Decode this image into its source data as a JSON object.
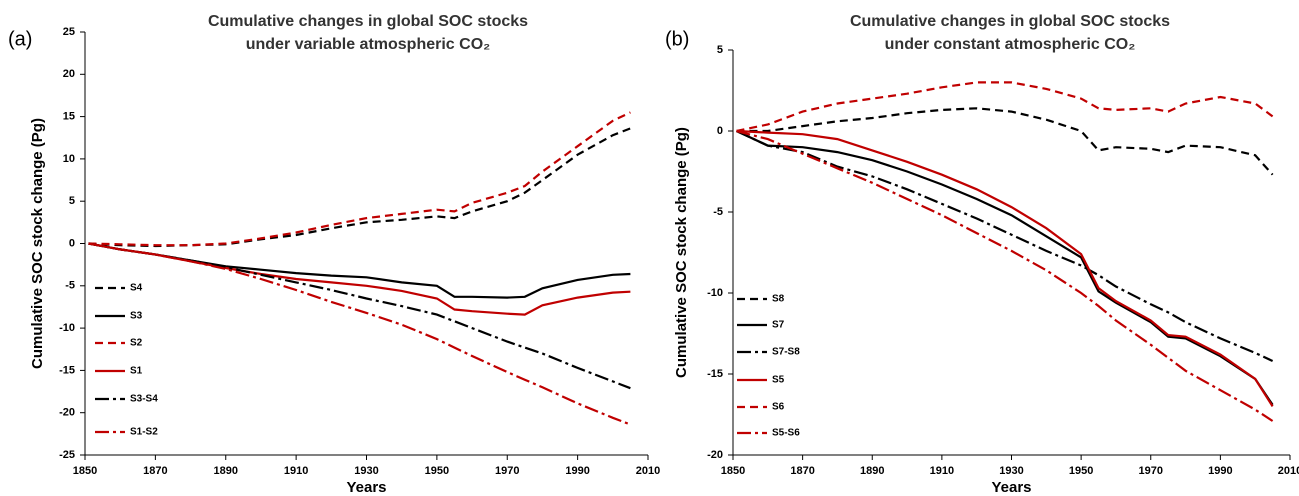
{
  "chart_data": [
    {
      "type": "line",
      "panel_label": "(a)",
      "title": [
        "Cumulative changes in global SOC stocks",
        "under variable atmospheric CO₂"
      ],
      "x_label": "Years",
      "y_label": "Cumulative SOC stock change (Pg)",
      "xlim": [
        1850,
        2010
      ],
      "xticks": [
        1850,
        1870,
        1890,
        1910,
        1930,
        1950,
        1970,
        1990,
        2010
      ],
      "ylim": [
        -25,
        25
      ],
      "yticks": [
        -25,
        -20,
        -15,
        -10,
        -5,
        0,
        5,
        10,
        15,
        20,
        25
      ],
      "x": [
        1851,
        1860,
        1870,
        1880,
        1890,
        1900,
        1910,
        1920,
        1930,
        1940,
        1950,
        1955,
        1960,
        1970,
        1975,
        1980,
        1990,
        2000,
        2005
      ],
      "series": [
        {
          "name": "S4",
          "color": "#000000",
          "dash": "dashed",
          "values": [
            0,
            -0.2,
            -0.3,
            -0.2,
            -0.1,
            0.5,
            1.0,
            1.8,
            2.5,
            2.8,
            3.2,
            3.0,
            3.8,
            5.0,
            6.0,
            7.5,
            10.5,
            12.8,
            13.6
          ]
        },
        {
          "name": "S3",
          "color": "#000000",
          "dash": "solid",
          "values": [
            0,
            -0.7,
            -1.3,
            -2.0,
            -2.7,
            -3.1,
            -3.5,
            -3.8,
            -4.0,
            -4.6,
            -5.0,
            -6.3,
            -6.3,
            -6.4,
            -6.3,
            -5.3,
            -4.3,
            -3.7,
            -3.6
          ]
        },
        {
          "name": "S2",
          "color": "#c00000",
          "dash": "dashed",
          "values": [
            0,
            -0.1,
            -0.2,
            -0.2,
            0,
            0.6,
            1.3,
            2.2,
            3.0,
            3.5,
            4.0,
            3.8,
            4.8,
            6.0,
            6.8,
            8.5,
            11.5,
            14.5,
            15.5
          ]
        },
        {
          "name": "S1",
          "color": "#c00000",
          "dash": "solid",
          "values": [
            0,
            -0.7,
            -1.3,
            -2.1,
            -2.9,
            -3.6,
            -4.2,
            -4.6,
            -5.0,
            -5.6,
            -6.5,
            -7.8,
            -8.0,
            -8.3,
            -8.4,
            -7.3,
            -6.4,
            -5.8,
            -5.7
          ]
        },
        {
          "name": "S3-S4",
          "color": "#000000",
          "dash": "dashdot",
          "values": [
            0,
            -0.7,
            -1.3,
            -2.0,
            -2.8,
            -3.7,
            -4.6,
            -5.5,
            -6.5,
            -7.4,
            -8.4,
            -9.2,
            -10.0,
            -11.6,
            -12.3,
            -13.0,
            -14.7,
            -16.3,
            -17.1
          ]
        },
        {
          "name": "S1-S2",
          "color": "#c00000",
          "dash": "dashdot",
          "values": [
            0,
            -0.7,
            -1.3,
            -2.1,
            -3.0,
            -4.2,
            -5.5,
            -6.9,
            -8.2,
            -9.6,
            -11.3,
            -12.3,
            -13.3,
            -15.2,
            -16.1,
            -17.0,
            -18.9,
            -20.6,
            -21.4
          ]
        }
      ]
    },
    {
      "type": "line",
      "panel_label": "(b)",
      "title": [
        "Cumulative changes in global SOC stocks",
        "under constant atmospheric CO₂"
      ],
      "x_label": "Years",
      "y_label": "Cumulative SOC stock change (Pg)",
      "xlim": [
        1850,
        2010
      ],
      "xticks": [
        1850,
        1870,
        1890,
        1910,
        1930,
        1950,
        1970,
        1990,
        2010
      ],
      "ylim": [
        -20,
        5
      ],
      "yticks": [
        -20,
        -15,
        -10,
        -5,
        0,
        5
      ],
      "x": [
        1851,
        1860,
        1870,
        1880,
        1890,
        1900,
        1910,
        1920,
        1930,
        1940,
        1950,
        1955,
        1960,
        1970,
        1975,
        1980,
        1990,
        2000,
        2005
      ],
      "series": [
        {
          "name": "S8",
          "color": "#000000",
          "dash": "dashed",
          "values": [
            0,
            0,
            0.3,
            0.6,
            0.8,
            1.1,
            1.3,
            1.4,
            1.2,
            0.7,
            0,
            -1.2,
            -1.0,
            -1.1,
            -1.3,
            -0.9,
            -1.0,
            -1.5,
            -2.7
          ]
        },
        {
          "name": "S7",
          "color": "#000000",
          "dash": "solid",
          "values": [
            0,
            -0.9,
            -1.0,
            -1.3,
            -1.8,
            -2.5,
            -3.3,
            -4.2,
            -5.2,
            -6.5,
            -7.8,
            -9.9,
            -10.6,
            -11.8,
            -12.7,
            -12.8,
            -13.9,
            -15.3,
            -16.9
          ]
        },
        {
          "name": "S7-S8",
          "color": "#000000",
          "dash": "dashdot",
          "values": [
            0,
            -0.9,
            -1.3,
            -2.2,
            -2.8,
            -3.6,
            -4.5,
            -5.4,
            -6.4,
            -7.4,
            -8.3,
            -8.9,
            -9.6,
            -10.7,
            -11.2,
            -11.8,
            -12.8,
            -13.7,
            -14.2
          ]
        },
        {
          "name": "S5",
          "color": "#c00000",
          "dash": "solid",
          "values": [
            0,
            -0.1,
            -0.2,
            -0.5,
            -1.2,
            -1.9,
            -2.7,
            -3.6,
            -4.7,
            -6.0,
            -7.6,
            -9.7,
            -10.5,
            -11.7,
            -12.6,
            -12.7,
            -13.8,
            -15.3,
            -17.0
          ]
        },
        {
          "name": "S6",
          "color": "#c00000",
          "dash": "dashed",
          "values": [
            0,
            0.4,
            1.2,
            1.7,
            2.0,
            2.3,
            2.7,
            3.0,
            3.0,
            2.6,
            2.0,
            1.4,
            1.3,
            1.4,
            1.2,
            1.7,
            2.1,
            1.7,
            0.9
          ]
        },
        {
          "name": "S5-S6",
          "color": "#c00000",
          "dash": "dashdot",
          "values": [
            0,
            -0.5,
            -1.4,
            -2.3,
            -3.2,
            -4.2,
            -5.2,
            -6.3,
            -7.4,
            -8.6,
            -10.0,
            -10.8,
            -11.7,
            -13.2,
            -14.0,
            -14.8,
            -16.0,
            -17.2,
            -17.9
          ]
        }
      ]
    }
  ]
}
